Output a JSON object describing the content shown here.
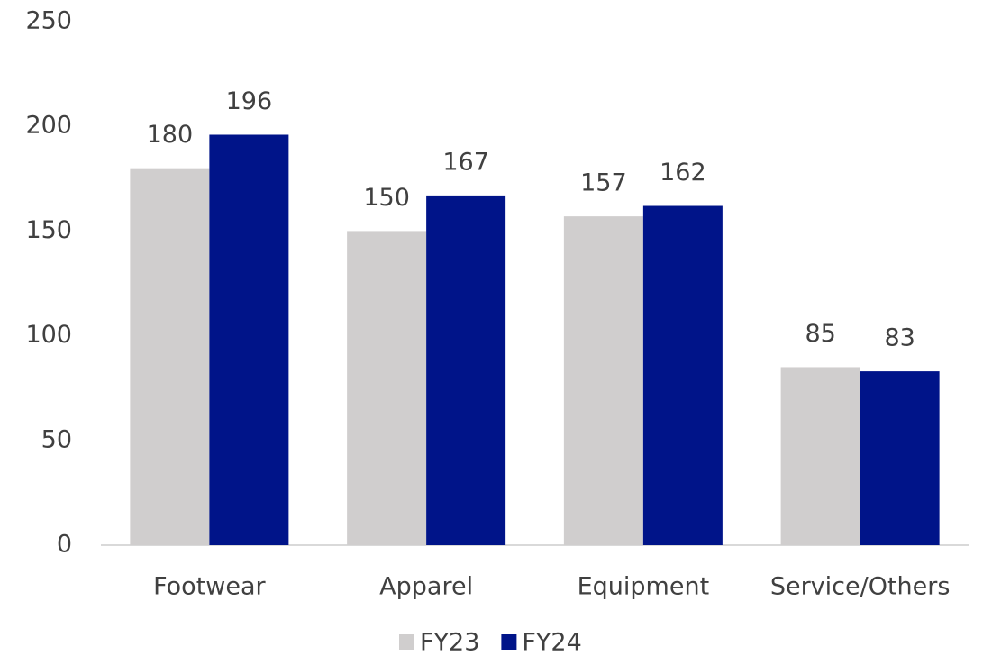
{
  "chart_data": {
    "type": "bar",
    "categories": [
      "Footwear",
      "Apparel",
      "Equipment",
      "Service/Others"
    ],
    "series": [
      {
        "name": "FY23",
        "color": "#d0cece",
        "values": [
          180,
          150,
          157,
          85
        ]
      },
      {
        "name": "FY24",
        "color": "#001489",
        "values": [
          196,
          167,
          162,
          83
        ]
      }
    ],
    "ylim": [
      0,
      250
    ],
    "yticks": [
      0,
      50,
      100,
      150,
      200,
      250
    ],
    "grid": false,
    "legend": "bottom"
  }
}
